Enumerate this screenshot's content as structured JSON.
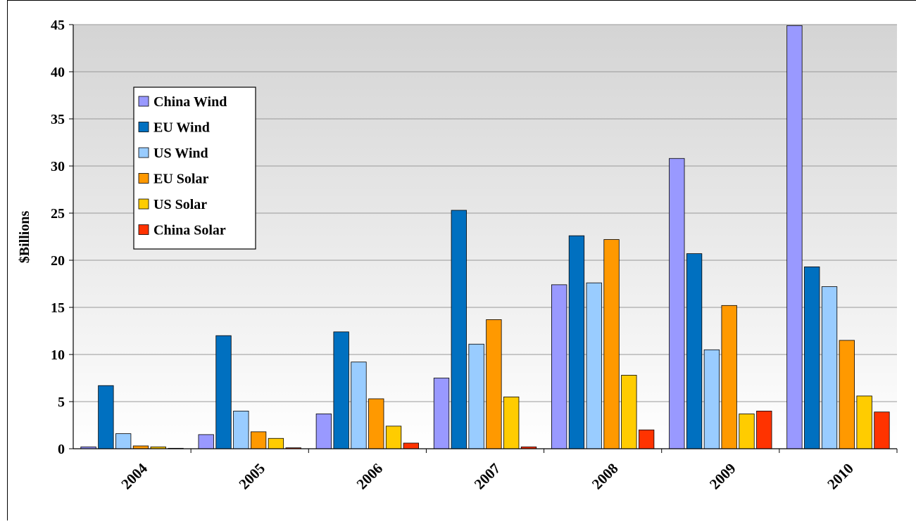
{
  "chart_data": {
    "type": "bar",
    "title": "",
    "xlabel": "",
    "ylabel": "$Billions",
    "ylim": [
      0,
      45
    ],
    "yticks": [
      0,
      5,
      10,
      15,
      20,
      25,
      30,
      35,
      40,
      45
    ],
    "grid": true,
    "legend_position": "upper-left",
    "categories": [
      "2004",
      "2005",
      "2006",
      "2007",
      "2008",
      "2009",
      "2010"
    ],
    "series": [
      {
        "name": "China Wind",
        "color": "#9999ff",
        "values": [
          0.2,
          1.5,
          3.7,
          7.5,
          17.4,
          30.8,
          44.9
        ]
      },
      {
        "name": "EU Wind",
        "color": "#0070c0",
        "values": [
          6.7,
          12.0,
          12.4,
          25.3,
          22.6,
          20.7,
          19.3
        ]
      },
      {
        "name": "US Wind",
        "color": "#99ccff",
        "values": [
          1.6,
          4.0,
          9.2,
          11.1,
          17.6,
          10.5,
          17.2
        ]
      },
      {
        "name": "EU Solar",
        "color": "#ff9900",
        "values": [
          0.3,
          1.8,
          5.3,
          13.7,
          22.2,
          15.2,
          11.5
        ]
      },
      {
        "name": "US Solar",
        "color": "#ffcc00",
        "values": [
          0.2,
          1.1,
          2.4,
          5.5,
          7.8,
          3.7,
          5.6
        ]
      },
      {
        "name": "China Solar",
        "color": "#ff3300",
        "values": [
          0.05,
          0.1,
          0.6,
          0.2,
          2.0,
          4.0,
          3.9
        ]
      }
    ]
  }
}
